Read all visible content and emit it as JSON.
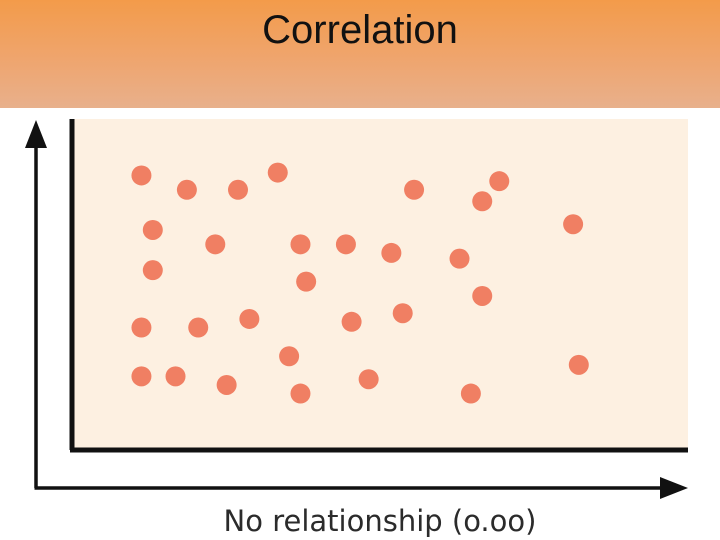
{
  "slide": {
    "title": "Correlation"
  },
  "chart_data": {
    "type": "scatter",
    "caption": "No relationship (o.oo)",
    "xlabel": "",
    "ylabel": "",
    "xlim": [
      0,
      100
    ],
    "ylim": [
      0,
      100
    ],
    "grid": false,
    "colors": {
      "point": "#f07f63",
      "plot_background": "#fdf0e1",
      "axis": "#111111"
    },
    "points": [
      {
        "x": 8,
        "y": 88
      },
      {
        "x": 16,
        "y": 83
      },
      {
        "x": 25,
        "y": 83
      },
      {
        "x": 32,
        "y": 89
      },
      {
        "x": 56,
        "y": 83
      },
      {
        "x": 68,
        "y": 79
      },
      {
        "x": 71,
        "y": 86
      },
      {
        "x": 84,
        "y": 71
      },
      {
        "x": 10,
        "y": 69
      },
      {
        "x": 21,
        "y": 64
      },
      {
        "x": 36,
        "y": 64
      },
      {
        "x": 44,
        "y": 64
      },
      {
        "x": 52,
        "y": 61
      },
      {
        "x": 64,
        "y": 59
      },
      {
        "x": 10,
        "y": 55
      },
      {
        "x": 37,
        "y": 51
      },
      {
        "x": 68,
        "y": 46
      },
      {
        "x": 8,
        "y": 35
      },
      {
        "x": 18,
        "y": 35
      },
      {
        "x": 27,
        "y": 38
      },
      {
        "x": 45,
        "y": 37
      },
      {
        "x": 54,
        "y": 40
      },
      {
        "x": 34,
        "y": 25
      },
      {
        "x": 8,
        "y": 18
      },
      {
        "x": 14,
        "y": 18
      },
      {
        "x": 23,
        "y": 15
      },
      {
        "x": 36,
        "y": 12
      },
      {
        "x": 48,
        "y": 17
      },
      {
        "x": 66,
        "y": 12
      },
      {
        "x": 85,
        "y": 22
      }
    ]
  }
}
